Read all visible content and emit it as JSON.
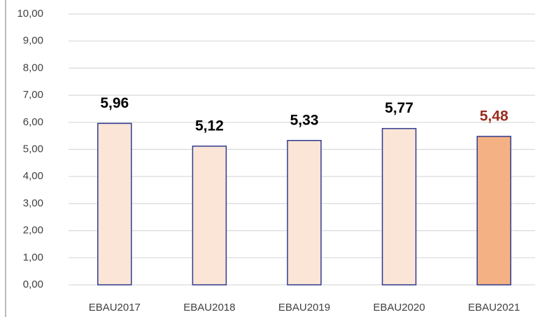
{
  "chart_data": {
    "type": "bar",
    "categories": [
      "EBAU2017",
      "EBAU2018",
      "EBAU2019",
      "EBAU2020",
      "EBAU2021"
    ],
    "values": [
      5.96,
      5.12,
      5.33,
      5.77,
      5.48
    ],
    "value_labels": [
      "5,96",
      "5,12",
      "5,33",
      "5,77",
      "5,48"
    ],
    "colors": [
      "#fbe5d6",
      "#fbe5d6",
      "#fbe5d6",
      "#fbe5d6",
      "#f4b183"
    ],
    "edge_color": "#2f3a8f",
    "value_label_colors": [
      "#000000",
      "#000000",
      "#000000",
      "#000000",
      "#9b2d20"
    ],
    "ylim": [
      0,
      10
    ],
    "yticks": [
      {
        "value": 0,
        "label": "0,00"
      },
      {
        "value": 1,
        "label": "1,00"
      },
      {
        "value": 2,
        "label": "2,00"
      },
      {
        "value": 3,
        "label": "3,00"
      },
      {
        "value": 4,
        "label": "4,00"
      },
      {
        "value": 5,
        "label": "5,00"
      },
      {
        "value": 6,
        "label": "6,00"
      },
      {
        "value": 7,
        "label": "7,00"
      },
      {
        "value": 8,
        "label": "8,00"
      },
      {
        "value": 9,
        "label": "9,00"
      },
      {
        "value": 10,
        "label": "10,00"
      }
    ],
    "grid": true
  }
}
